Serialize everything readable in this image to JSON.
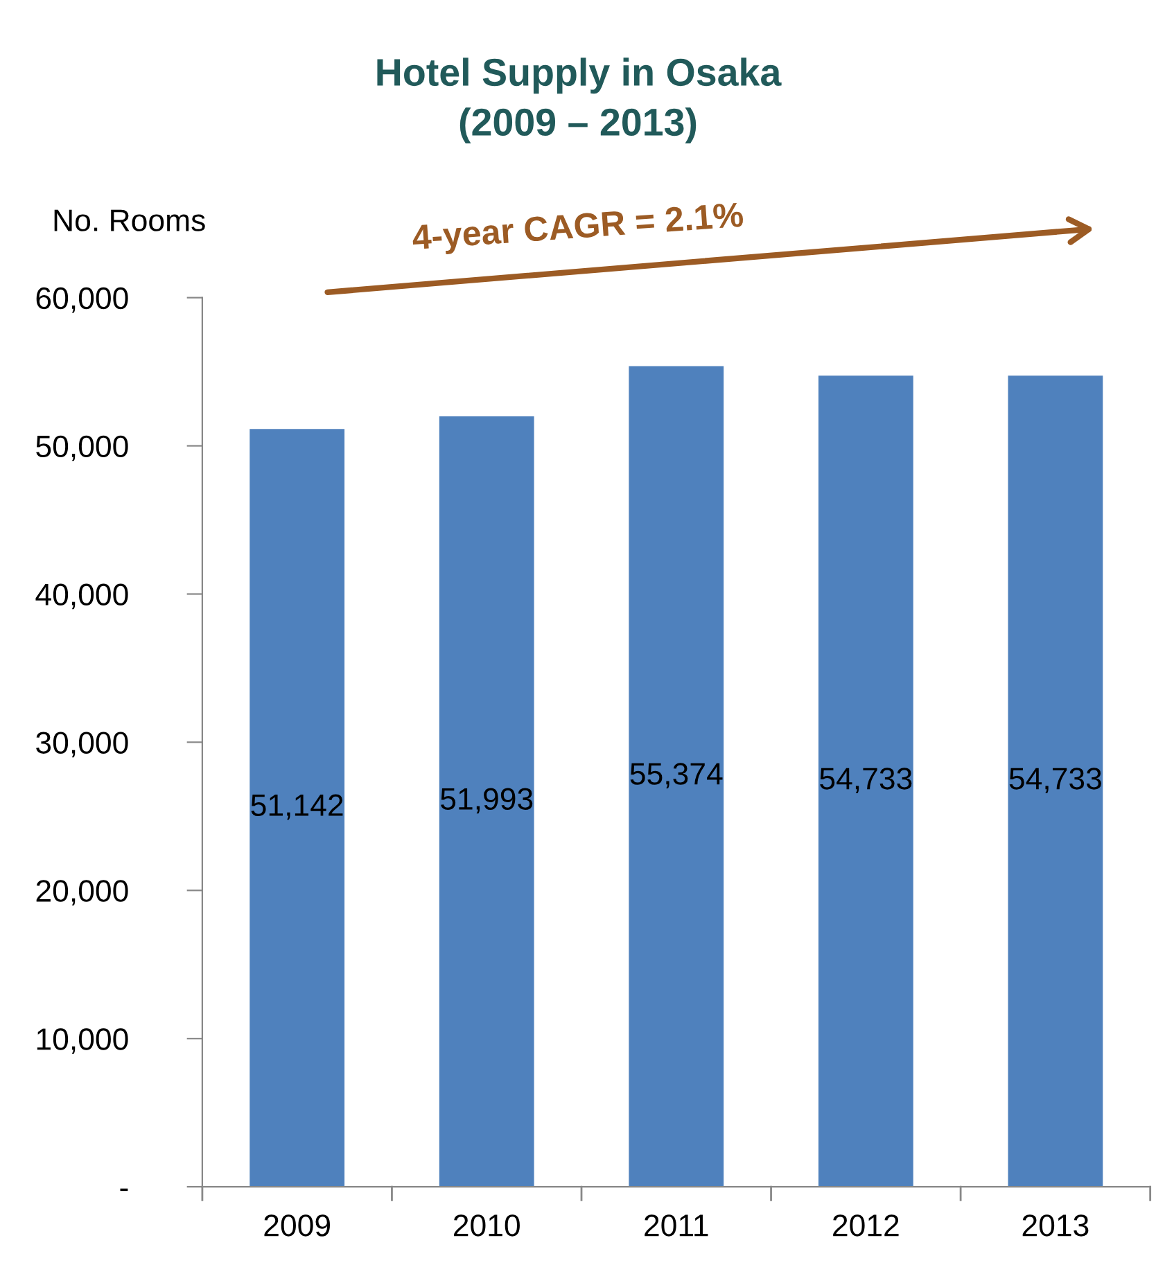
{
  "chart_data": {
    "type": "bar",
    "title": "Hotel Supply in Osaka\n(2009 – 2013)",
    "ylabel": "No. Rooms",
    "categories": [
      "2009",
      "2010",
      "2011",
      "2012",
      "2013"
    ],
    "values": [
      51142,
      51993,
      55374,
      54733,
      54733
    ],
    "color": "#4f81bd",
    "ylim": [
      0,
      60000
    ],
    "yticks": [
      {
        "value": 0,
        "label": "-"
      },
      {
        "value": 10000,
        "label": "10,000"
      },
      {
        "value": 20000,
        "label": "20,000"
      },
      {
        "value": 30000,
        "label": "30,000"
      },
      {
        "value": 40000,
        "label": "40,000"
      },
      {
        "value": 50000,
        "label": "50,000"
      },
      {
        "value": 60000,
        "label": "60,000"
      }
    ],
    "value_labels": [
      "51,142",
      "51,993",
      "55,374",
      "54,733",
      "54,733"
    ],
    "annotations": [
      "4-year CAGR = 2.1%"
    ],
    "grid": false,
    "legend": false
  }
}
